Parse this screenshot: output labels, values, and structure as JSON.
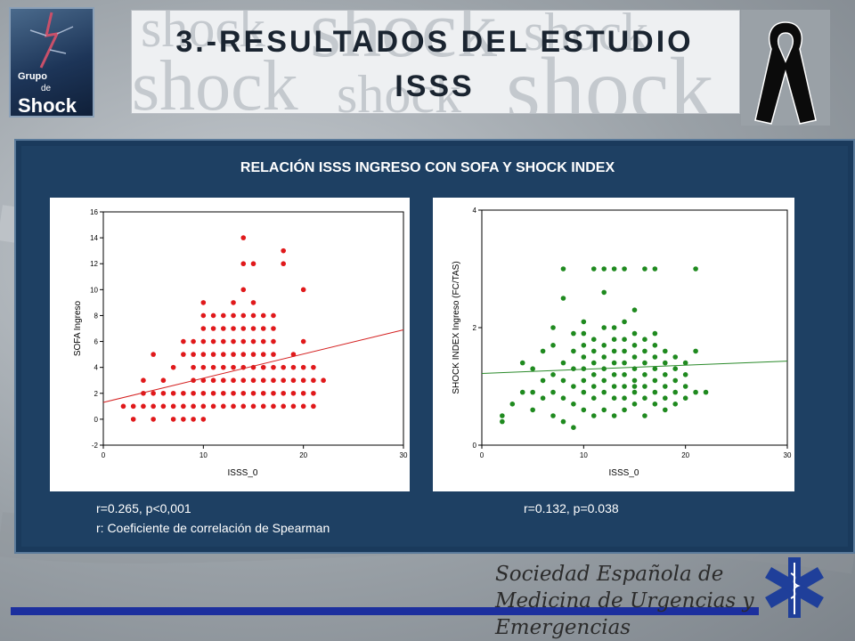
{
  "header": {
    "logo_line1": "Grupo",
    "logo_line2": "de",
    "logo_line3": "Shock",
    "title_line1": "3.-RESULTADOS DEL ESTUDIO",
    "title_line2": "ISSS",
    "watermark_word": "shock"
  },
  "panel": {
    "title": "RELACIÓN ISSS INGRESO CON SOFA Y SHOCK INDEX",
    "stat_left": "r=0.265, p<0,001",
    "stat_right": "r=0.132, p=0.038",
    "note": "r: Coeficiente de correlación de Spearman"
  },
  "footer": {
    "society_line1": "Sociedad Española de",
    "society_line2": "Medicina de Urgencias y Emergencias"
  },
  "chart_data": [
    {
      "type": "scatter",
      "xlabel": "ISSS_0",
      "ylabel": "SOFA Ingreso",
      "xlim": [
        0,
        30
      ],
      "ylim": [
        -2,
        16
      ],
      "xticks": [
        0,
        10,
        20,
        30
      ],
      "yticks": [
        -2,
        0,
        2,
        4,
        6,
        8,
        10,
        12,
        14,
        16
      ],
      "marker_color": "#e0191b",
      "line_color": "#d42020",
      "trend_line": {
        "x": [
          0,
          30
        ],
        "y": [
          1.3,
          6.9
        ]
      },
      "x": [
        2,
        3,
        3,
        4,
        4,
        4,
        5,
        5,
        5,
        5,
        6,
        6,
        6,
        7,
        7,
        7,
        7,
        8,
        8,
        8,
        8,
        8,
        9,
        9,
        9,
        9,
        9,
        9,
        9,
        10,
        10,
        10,
        10,
        10,
        10,
        10,
        10,
        10,
        10,
        11,
        11,
        11,
        11,
        11,
        11,
        11,
        11,
        12,
        12,
        12,
        12,
        12,
        12,
        12,
        12,
        13,
        13,
        13,
        13,
        13,
        13,
        13,
        13,
        13,
        14,
        14,
        14,
        14,
        14,
        14,
        14,
        14,
        14,
        14,
        14,
        15,
        15,
        15,
        15,
        15,
        15,
        15,
        15,
        15,
        15,
        16,
        16,
        16,
        16,
        16,
        16,
        16,
        16,
        17,
        17,
        17,
        17,
        17,
        17,
        17,
        17,
        18,
        18,
        18,
        18,
        18,
        18,
        19,
        19,
        19,
        19,
        19,
        20,
        20,
        20,
        20,
        20,
        20,
        21,
        21,
        21,
        21,
        22
      ],
      "y": [
        1,
        1,
        0,
        3,
        2,
        1,
        0,
        2,
        1,
        5,
        2,
        1,
        3,
        2,
        1,
        0,
        4,
        2,
        1,
        0,
        6,
        5,
        2,
        1,
        0,
        3,
        4,
        5,
        6,
        2,
        1,
        0,
        3,
        4,
        5,
        6,
        7,
        8,
        9,
        2,
        1,
        3,
        4,
        5,
        6,
        7,
        8,
        2,
        1,
        3,
        4,
        5,
        6,
        7,
        8,
        2,
        1,
        3,
        4,
        5,
        6,
        7,
        8,
        9,
        2,
        1,
        3,
        4,
        5,
        6,
        7,
        8,
        10,
        12,
        14,
        2,
        1,
        3,
        4,
        5,
        6,
        7,
        8,
        9,
        12,
        2,
        1,
        3,
        4,
        5,
        6,
        7,
        8,
        2,
        1,
        3,
        4,
        5,
        6,
        7,
        8,
        2,
        1,
        3,
        4,
        13,
        12,
        2,
        1,
        3,
        4,
        5,
        2,
        1,
        3,
        4,
        6,
        10,
        2,
        1,
        3,
        4,
        3
      ]
    },
    {
      "type": "scatter",
      "xlabel": "ISSS_0",
      "ylabel": "SHOCK INDEX Ingreso (FC/TAS)",
      "xlim": [
        0,
        30
      ],
      "ylim": [
        0,
        4
      ],
      "xticks": [
        0,
        10,
        20,
        30
      ],
      "yticks": [
        0,
        2,
        4
      ],
      "marker_color": "#1f8a1f",
      "line_color": "#2a8a2a",
      "trend_line": {
        "x": [
          0,
          30
        ],
        "y": [
          1.22,
          1.43
        ]
      },
      "x": [
        2,
        2,
        3,
        4,
        4,
        5,
        5,
        5,
        6,
        6,
        6,
        7,
        7,
        7,
        7,
        7,
        8,
        8,
        8,
        8,
        8,
        8,
        9,
        9,
        9,
        9,
        9,
        9,
        10,
        10,
        10,
        10,
        10,
        10,
        10,
        10,
        11,
        11,
        11,
        11,
        11,
        11,
        11,
        11,
        12,
        12,
        12,
        12,
        12,
        12,
        12,
        12,
        12,
        13,
        13,
        13,
        13,
        13,
        13,
        13,
        13,
        13,
        14,
        14,
        14,
        14,
        14,
        14,
        14,
        14,
        14,
        15,
        15,
        15,
        15,
        15,
        15,
        15,
        15,
        15,
        16,
        16,
        16,
        16,
        16,
        16,
        16,
        16,
        17,
        17,
        17,
        17,
        17,
        17,
        17,
        17,
        18,
        18,
        18,
        18,
        18,
        18,
        19,
        19,
        19,
        19,
        19,
        20,
        20,
        20,
        20,
        21,
        21,
        21,
        22
      ],
      "y": [
        0.4,
        0.5,
        0.7,
        0.9,
        1.4,
        0.6,
        0.9,
        1.3,
        0.8,
        1.1,
        1.6,
        0.5,
        0.9,
        1.2,
        1.7,
        2.0,
        0.4,
        0.8,
        1.1,
        1.4,
        2.5,
        3.0,
        0.3,
        0.7,
        1.0,
        1.3,
        1.6,
        1.9,
        0.6,
        0.9,
        1.1,
        1.3,
        1.5,
        1.7,
        1.9,
        2.1,
        0.5,
        0.8,
        1.0,
        1.2,
        1.4,
        1.6,
        1.8,
        3.0,
        0.6,
        0.9,
        1.1,
        1.3,
        1.5,
        1.7,
        2.0,
        2.6,
        3.0,
        0.5,
        0.8,
        1.0,
        1.2,
        1.4,
        1.6,
        1.8,
        2.0,
        3.0,
        0.6,
        0.8,
        1.0,
        1.2,
        1.4,
        1.6,
        1.8,
        2.1,
        3.0,
        0.7,
        0.9,
        1.1,
        1.3,
        1.5,
        1.7,
        1.9,
        2.3,
        1.0,
        0.5,
        0.8,
        1.0,
        1.2,
        1.4,
        1.6,
        1.8,
        3.0,
        0.7,
        0.9,
        1.1,
        1.3,
        1.5,
        1.7,
        1.9,
        3.0,
        0.6,
        0.8,
        1.0,
        1.2,
        1.4,
        1.6,
        0.7,
        0.9,
        1.1,
        1.3,
        1.5,
        0.8,
        1.0,
        1.2,
        1.4,
        0.9,
        1.6,
        3.0,
        0.9
      ]
    }
  ]
}
